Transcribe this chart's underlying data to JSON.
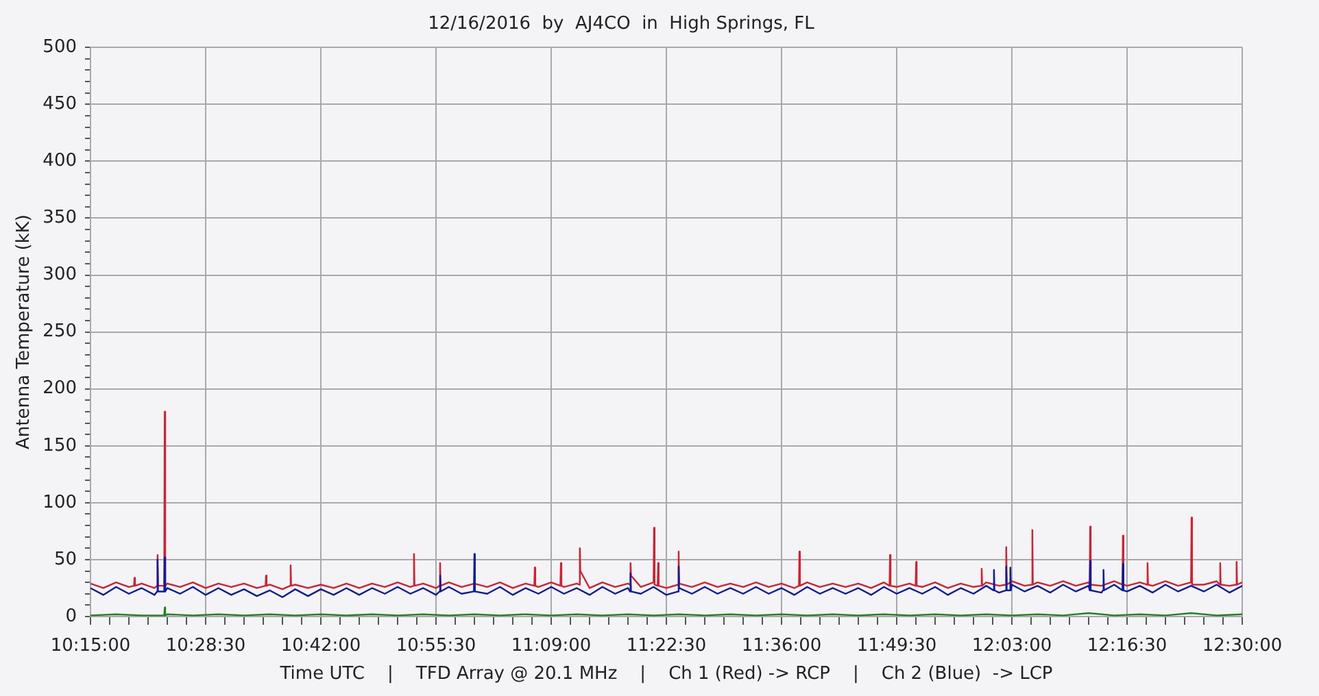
{
  "chart_data": {
    "type": "line",
    "title": "12/16/2016  by  AJ4CO  in  High Springs, FL",
    "xlabel": "Time UTC    |    TFD Array @ 20.1 MHz    |    Ch 1 (Red) -> RCP    |    Ch 2 (Blue)  -> LCP",
    "ylabel": "Antenna Temperature (kK)",
    "xlim": [
      10.25,
      12.5
    ],
    "ylim": [
      0,
      500
    ],
    "grid": true,
    "xticks": [
      {
        "value": 10.25,
        "label": "10:15:00"
      },
      {
        "value": 10.2875,
        "label": null
      },
      {
        "value": 10.325,
        "label": null
      },
      {
        "value": 10.3625,
        "label": null
      },
      {
        "value": 10.4,
        "label": null
      },
      {
        "value": 10.4375,
        "label": null
      },
      {
        "value": 10.475,
        "label": "10:28:30"
      },
      {
        "value": 10.5125,
        "label": null
      },
      {
        "value": 10.55,
        "label": null
      },
      {
        "value": 10.5875,
        "label": null
      },
      {
        "value": 10.625,
        "label": null
      },
      {
        "value": 10.6625,
        "label": null
      },
      {
        "value": 10.7,
        "label": "10:42:00"
      },
      {
        "value": 10.7375,
        "label": null
      },
      {
        "value": 10.775,
        "label": null
      },
      {
        "value": 10.8125,
        "label": null
      },
      {
        "value": 10.85,
        "label": null
      },
      {
        "value": 10.8875,
        "label": null
      },
      {
        "value": 10.925,
        "label": "10:55:30"
      },
      {
        "value": 10.9625,
        "label": null
      },
      {
        "value": 11.0,
        "label": null
      },
      {
        "value": 11.0375,
        "label": null
      },
      {
        "value": 11.075,
        "label": null
      },
      {
        "value": 11.1125,
        "label": null
      },
      {
        "value": 11.15,
        "label": "11:09:00"
      },
      {
        "value": 11.1875,
        "label": null
      },
      {
        "value": 11.225,
        "label": null
      },
      {
        "value": 11.2625,
        "label": null
      },
      {
        "value": 11.3,
        "label": null
      },
      {
        "value": 11.3375,
        "label": null
      },
      {
        "value": 11.375,
        "label": "11:22:30"
      },
      {
        "value": 11.4125,
        "label": null
      },
      {
        "value": 11.45,
        "label": null
      },
      {
        "value": 11.4875,
        "label": null
      },
      {
        "value": 11.525,
        "label": null
      },
      {
        "value": 11.5625,
        "label": null
      },
      {
        "value": 11.6,
        "label": "11:36:00"
      },
      {
        "value": 11.6375,
        "label": null
      },
      {
        "value": 11.675,
        "label": null
      },
      {
        "value": 11.7125,
        "label": null
      },
      {
        "value": 11.75,
        "label": null
      },
      {
        "value": 11.7875,
        "label": null
      },
      {
        "value": 11.825,
        "label": "11:49:30"
      },
      {
        "value": 11.8625,
        "label": null
      },
      {
        "value": 11.9,
        "label": null
      },
      {
        "value": 11.9375,
        "label": null
      },
      {
        "value": 11.975,
        "label": null
      },
      {
        "value": 12.0125,
        "label": null
      },
      {
        "value": 12.05,
        "label": "12:03:00"
      },
      {
        "value": 12.0875,
        "label": null
      },
      {
        "value": 12.125,
        "label": null
      },
      {
        "value": 12.1625,
        "label": null
      },
      {
        "value": 12.2,
        "label": null
      },
      {
        "value": 12.2375,
        "label": null
      },
      {
        "value": 12.275,
        "label": "12:16:30"
      },
      {
        "value": 12.3125,
        "label": null
      },
      {
        "value": 12.35,
        "label": null
      },
      {
        "value": 12.3875,
        "label": null
      },
      {
        "value": 12.425,
        "label": null
      },
      {
        "value": 12.4625,
        "label": null
      },
      {
        "value": 12.5,
        "label": "12:30:00"
      }
    ],
    "yticks": [
      0,
      {
        "value": 10,
        "label": null
      },
      {
        "value": 20,
        "label": null
      },
      {
        "value": 30,
        "label": null
      },
      {
        "value": 40,
        "label": null
      },
      50,
      {
        "value": 60,
        "label": null
      },
      {
        "value": 70,
        "label": null
      },
      {
        "value": 80,
        "label": null
      },
      {
        "value": 90,
        "label": null
      },
      100,
      {
        "value": 110,
        "label": null
      },
      {
        "value": 120,
        "label": null
      },
      {
        "value": 130,
        "label": null
      },
      {
        "value": 140,
        "label": null
      },
      150,
      {
        "value": 160,
        "label": null
      },
      {
        "value": 170,
        "label": null
      },
      {
        "value": 180,
        "label": null
      },
      {
        "value": 190,
        "label": null
      },
      200,
      {
        "value": 210,
        "label": null
      },
      {
        "value": 220,
        "label": null
      },
      {
        "value": 230,
        "label": null
      },
      {
        "value": 240,
        "label": null
      },
      250,
      {
        "value": 260,
        "label": null
      },
      {
        "value": 270,
        "label": null
      },
      {
        "value": 280,
        "label": null
      },
      {
        "value": 290,
        "label": null
      },
      300,
      {
        "value": 310,
        "label": null
      },
      {
        "value": 320,
        "label": null
      },
      {
        "value": 330,
        "label": null
      },
      {
        "value": 340,
        "label": null
      },
      350,
      {
        "value": 360,
        "label": null
      },
      {
        "value": 370,
        "label": null
      },
      {
        "value": 380,
        "label": null
      },
      {
        "value": 390,
        "label": null
      },
      400,
      {
        "value": 410,
        "label": null
      },
      {
        "value": 420,
        "label": null
      },
      {
        "value": 430,
        "label": null
      },
      {
        "value": 440,
        "label": null
      },
      450,
      {
        "value": 460,
        "label": null
      },
      {
        "value": 470,
        "label": null
      },
      {
        "value": 480,
        "label": null
      },
      {
        "value": 490,
        "label": null
      },
      500
    ],
    "series": [
      {
        "color": "#d22030",
        "x": [
          10.25,
          10.275,
          10.3,
          10.325,
          10.335,
          10.336,
          10.337,
          10.35,
          10.375,
          10.38,
          10.381,
          10.382,
          10.394,
          10.395,
          10.396,
          10.4,
          10.425,
          10.45,
          10.475,
          10.5,
          10.525,
          10.55,
          10.575,
          10.592,
          10.593,
          10.594,
          10.6,
          10.625,
          10.64,
          10.641,
          10.642,
          10.65,
          10.675,
          10.7,
          10.725,
          10.75,
          10.775,
          10.8,
          10.825,
          10.85,
          10.875,
          10.881,
          10.882,
          10.883,
          10.9,
          10.925,
          10.932,
          10.933,
          10.934,
          10.95,
          10.975,
          11.0,
          11.025,
          11.05,
          11.075,
          11.1,
          11.117,
          11.118,
          11.119,
          11.125,
          11.15,
          11.168,
          11.169,
          11.17,
          11.175,
          11.2,
          11.205,
          11.206,
          11.207,
          11.225,
          11.25,
          11.275,
          11.3,
          11.304,
          11.305,
          11.306,
          11.325,
          11.35,
          11.351,
          11.352,
          11.358,
          11.359,
          11.36,
          11.375,
          11.398,
          11.399,
          11.4,
          11.425,
          11.45,
          11.475,
          11.5,
          11.525,
          11.55,
          11.575,
          11.6,
          11.625,
          11.634,
          11.635,
          11.636,
          11.65,
          11.675,
          11.7,
          11.725,
          11.75,
          11.775,
          11.8,
          11.811,
          11.812,
          11.813,
          11.825,
          11.85,
          11.862,
          11.863,
          11.864,
          11.875,
          11.9,
          11.925,
          11.95,
          11.975,
          11.99,
          11.991,
          11.992,
          12.0,
          12.025,
          12.038,
          12.039,
          12.04,
          12.05,
          12.075,
          12.089,
          12.09,
          12.091,
          12.1,
          12.125,
          12.15,
          12.175,
          12.2,
          12.202,
          12.203,
          12.204,
          12.225,
          12.25,
          12.266,
          12.267,
          12.268,
          12.275,
          12.3,
          12.314,
          12.315,
          12.316,
          12.325,
          12.35,
          12.375,
          12.4,
          12.401,
          12.402,
          12.425,
          12.45,
          12.456,
          12.457,
          12.458,
          12.475,
          12.488,
          12.489,
          12.49,
          12.5
        ],
        "values": [
          29,
          25,
          30,
          26,
          27,
          34,
          27,
          29,
          25,
          27,
          54,
          27,
          27,
          180,
          27,
          29,
          26,
          30,
          25,
          29,
          26,
          29,
          25,
          27,
          36,
          27,
          28,
          24,
          27,
          45,
          27,
          28,
          25,
          28,
          25,
          29,
          25,
          29,
          26,
          30,
          26,
          27,
          55,
          27,
          29,
          25,
          27,
          47,
          27,
          30,
          26,
          29,
          26,
          30,
          25,
          29,
          27,
          43,
          27,
          26,
          30,
          27,
          47,
          27,
          26,
          29,
          28,
          60,
          40,
          25,
          30,
          26,
          29,
          28,
          47,
          36,
          26,
          30,
          78,
          28,
          27,
          47,
          27,
          25,
          28,
          57,
          29,
          26,
          30,
          26,
          29,
          26,
          30,
          26,
          29,
          25,
          27,
          57,
          27,
          30,
          26,
          29,
          26,
          29,
          25,
          30,
          27,
          54,
          27,
          26,
          29,
          27,
          48,
          27,
          26,
          30,
          25,
          29,
          26,
          27,
          42,
          27,
          30,
          27,
          28,
          61,
          28,
          31,
          27,
          28,
          76,
          28,
          30,
          27,
          31,
          27,
          30,
          28,
          79,
          28,
          27,
          31,
          28,
          71,
          28,
          27,
          30,
          28,
          47,
          28,
          27,
          31,
          27,
          30,
          87,
          28,
          28,
          31,
          28,
          47,
          28,
          27,
          28,
          48,
          28,
          30
        ]
      },
      {
        "color": "#0c1ca0",
        "x": [
          10.25,
          10.275,
          10.3,
          10.325,
          10.35,
          10.375,
          10.38,
          10.381,
          10.382,
          10.394,
          10.395,
          10.396,
          10.4,
          10.425,
          10.45,
          10.475,
          10.5,
          10.525,
          10.55,
          10.575,
          10.6,
          10.625,
          10.65,
          10.675,
          10.7,
          10.725,
          10.75,
          10.775,
          10.8,
          10.825,
          10.85,
          10.875,
          10.9,
          10.925,
          10.932,
          10.933,
          10.934,
          10.95,
          10.975,
          10.999,
          11.0,
          11.001,
          11.025,
          11.05,
          11.075,
          11.1,
          11.125,
          11.15,
          11.175,
          11.2,
          11.225,
          11.25,
          11.275,
          11.3,
          11.304,
          11.305,
          11.306,
          11.325,
          11.35,
          11.375,
          11.398,
          11.399,
          11.4,
          11.425,
          11.45,
          11.475,
          11.5,
          11.525,
          11.55,
          11.575,
          11.6,
          11.625,
          11.65,
          11.675,
          11.7,
          11.725,
          11.75,
          11.775,
          11.8,
          11.825,
          11.85,
          11.875,
          11.9,
          11.925,
          11.95,
          11.975,
          12.0,
          12.014,
          12.015,
          12.016,
          12.025,
          12.038,
          12.039,
          12.04,
          12.046,
          12.047,
          12.048,
          12.05,
          12.075,
          12.1,
          12.125,
          12.15,
          12.175,
          12.2,
          12.202,
          12.203,
          12.204,
          12.225,
          12.228,
          12.229,
          12.23,
          12.25,
          12.266,
          12.267,
          12.268,
          12.275,
          12.3,
          12.325,
          12.35,
          12.375,
          12.4,
          12.425,
          12.45,
          12.475,
          12.5
        ],
        "values": [
          25,
          19,
          26,
          20,
          25,
          19,
          22,
          50,
          22,
          22,
          52,
          22,
          25,
          20,
          26,
          19,
          25,
          19,
          24,
          18,
          23,
          17,
          24,
          18,
          24,
          19,
          25,
          19,
          25,
          20,
          26,
          20,
          25,
          19,
          22,
          36,
          22,
          26,
          20,
          22,
          55,
          22,
          20,
          26,
          19,
          25,
          20,
          26,
          20,
          25,
          19,
          26,
          20,
          25,
          22,
          38,
          22,
          20,
          26,
          19,
          22,
          44,
          25,
          20,
          26,
          20,
          25,
          20,
          26,
          20,
          25,
          19,
          26,
          20,
          25,
          20,
          25,
          19,
          26,
          20,
          25,
          20,
          26,
          19,
          25,
          20,
          27,
          23,
          41,
          23,
          21,
          23,
          44,
          23,
          23,
          43,
          23,
          28,
          22,
          27,
          21,
          28,
          22,
          27,
          23,
          49,
          23,
          21,
          23,
          41,
          23,
          28,
          23,
          46,
          23,
          22,
          27,
          21,
          28,
          22,
          27,
          22,
          28,
          21,
          27
        ]
      },
      {
        "color": "#208020",
        "x": [
          10.25,
          10.3,
          10.35,
          10.394,
          10.395,
          10.396,
          10.4,
          10.45,
          10.5,
          10.55,
          10.6,
          10.65,
          10.7,
          10.75,
          10.8,
          10.85,
          10.9,
          10.95,
          11.0,
          11.05,
          11.1,
          11.15,
          11.2,
          11.25,
          11.3,
          11.35,
          11.4,
          11.45,
          11.5,
          11.55,
          11.6,
          11.65,
          11.7,
          11.75,
          11.8,
          11.85,
          11.9,
          11.95,
          12.0,
          12.05,
          12.1,
          12.15,
          12.2,
          12.25,
          12.3,
          12.35,
          12.4,
          12.45,
          12.5
        ],
        "values": [
          1,
          2,
          1,
          1,
          8,
          1,
          2,
          1,
          2,
          1,
          2,
          1,
          2,
          1,
          2,
          1,
          2,
          1,
          2,
          1,
          2,
          1,
          2,
          1,
          2,
          1,
          2,
          1,
          2,
          1,
          2,
          1,
          2,
          1,
          2,
          1,
          2,
          1,
          2,
          1,
          2,
          1,
          3,
          1,
          2,
          1,
          3,
          1,
          2
        ]
      }
    ]
  }
}
